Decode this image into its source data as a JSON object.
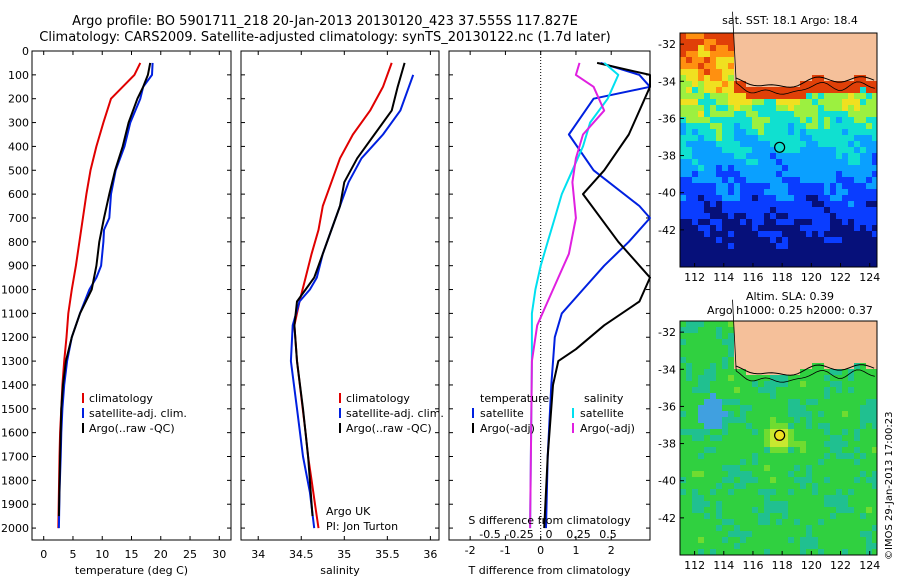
{
  "header": {
    "title_line1": "Argo profile: BO 5901711_218 20-Jan-2013 20130120_423 37.555S 117.827E",
    "title_line2": "Climatology: CARS2009. Satellite-adjusted climatology: synTS_20130122.nc (1.7d later)"
  },
  "colors": {
    "climatology": "#e00000",
    "satellite": "#0020e0",
    "argo": "#000000",
    "sal_satellite": "#00e0f0",
    "sal_argo": "#e020e0",
    "land": "#f5c09a"
  },
  "depth_axis": {
    "ylim": [
      0,
      2050
    ],
    "ticks": [
      0,
      100,
      200,
      300,
      400,
      500,
      600,
      700,
      800,
      900,
      1000,
      1100,
      1200,
      1300,
      1400,
      1500,
      1600,
      1700,
      1800,
      1900,
      2000
    ],
    "reversed": true
  },
  "chart_data": [
    {
      "type": "line",
      "xlabel": "temperature (deg C)",
      "xlim": [
        -2,
        32
      ],
      "xticks": [
        0,
        5,
        10,
        15,
        20,
        25,
        30
      ],
      "legend": [
        "climatology",
        "satellite-adj. clim.",
        "Argo(..raw -QC)"
      ],
      "series": [
        {
          "name": "climatology",
          "color": "climatology",
          "x": [
            16.5,
            15.5,
            13.5,
            11.5,
            10.2,
            9.0,
            8.0,
            7.3,
            6.7,
            6.1,
            5.5,
            4.8,
            4.2,
            3.9,
            3.5,
            3.2,
            3.0,
            2.8,
            2.7,
            2.6,
            2.5
          ],
          "y": [
            50,
            100,
            150,
            200,
            300,
            400,
            500,
            600,
            700,
            800,
            900,
            1000,
            1100,
            1200,
            1300,
            1400,
            1500,
            1600,
            1700,
            1850,
            2000
          ]
        },
        {
          "name": "satellite-adj. clim.",
          "color": "satellite",
          "x": [
            18.6,
            18.5,
            17.0,
            16.5,
            14.8,
            13.8,
            12.3,
            11.5,
            11.2,
            10.3,
            10.2,
            9.8,
            9.0,
            7.8,
            6.2,
            4.8,
            4.0,
            3.5,
            3.2,
            3.0,
            2.9,
            2.7,
            2.6
          ],
          "y": [
            50,
            100,
            150,
            200,
            300,
            400,
            500,
            600,
            700,
            750,
            800,
            900,
            950,
            1000,
            1100,
            1200,
            1300,
            1400,
            1500,
            1600,
            1700,
            1850,
            2000
          ]
        },
        {
          "name": "Argo(..raw -QC)",
          "color": "argo",
          "x": [
            18.2,
            17.8,
            17.0,
            16.0,
            14.5,
            13.5,
            12.2,
            11.2,
            10.3,
            9.5,
            9.0,
            8.2,
            6.2,
            4.8,
            3.8,
            3.3,
            3.0,
            2.8,
            2.6
          ],
          "y": [
            50,
            100,
            150,
            200,
            300,
            400,
            500,
            600,
            700,
            800,
            900,
            1000,
            1100,
            1200,
            1300,
            1400,
            1500,
            1700,
            1950
          ]
        }
      ]
    },
    {
      "type": "line",
      "xlabel": "salinity",
      "xlim": [
        33.8,
        36.1
      ],
      "xticks": [
        34,
        34.5,
        35,
        35.5,
        36
      ],
      "legend": [
        "climatology",
        "satellite-adj. clim.",
        "Argo(..raw -QC)"
      ],
      "annotation": [
        "Argo UK",
        "PI: Jon Turton"
      ],
      "series": [
        {
          "name": "climatology",
          "color": "climatology",
          "x": [
            35.55,
            35.45,
            35.3,
            35.1,
            34.95,
            34.85,
            34.75,
            34.7,
            34.62,
            34.55,
            34.48,
            34.42,
            34.45,
            34.5,
            34.55,
            34.58,
            34.62,
            34.66,
            34.7
          ],
          "y": [
            50,
            150,
            250,
            350,
            450,
            550,
            650,
            750,
            850,
            950,
            1050,
            1150,
            1300,
            1450,
            1600,
            1700,
            1800,
            1900,
            2000
          ]
        },
        {
          "name": "satellite-adj. clim.",
          "color": "satellite",
          "x": [
            35.8,
            35.75,
            35.65,
            35.45,
            35.2,
            35.05,
            34.95,
            34.85,
            34.75,
            34.68,
            34.6,
            34.48,
            34.4,
            34.38,
            34.45,
            34.52,
            34.6,
            34.65
          ],
          "y": [
            100,
            150,
            250,
            350,
            450,
            550,
            650,
            750,
            850,
            950,
            1000,
            1050,
            1150,
            1300,
            1500,
            1700,
            1850,
            2000
          ]
        },
        {
          "name": "Argo(..raw -QC)",
          "color": "argo",
          "x": [
            35.7,
            35.62,
            35.55,
            35.35,
            35.15,
            35.0,
            34.95,
            34.85,
            34.75,
            34.65,
            34.55,
            34.45,
            34.42,
            34.45,
            34.52,
            34.58,
            34.63
          ],
          "y": [
            50,
            150,
            250,
            350,
            450,
            550,
            650,
            750,
            850,
            950,
            1000,
            1050,
            1150,
            1300,
            1500,
            1700,
            1950
          ]
        }
      ]
    },
    {
      "type": "line",
      "xlabel": "T difference from climatology",
      "xlabel2": "S difference from climatology",
      "xlim": [
        -2.6,
        3.1
      ],
      "xticks": [
        -2,
        -1,
        0,
        1,
        2
      ],
      "xticks_salinity": [
        -0.5,
        -0.25,
        0,
        0.25,
        0.5
      ],
      "legend_headers": [
        "temperature",
        "salinity"
      ],
      "legend": [
        "satellite",
        "Argo(-adj)",
        "satellite",
        "Argo(-adj)"
      ],
      "series": [
        {
          "name": "satellite",
          "quantity": "temperature",
          "color": "satellite",
          "x": [
            1.7,
            2.8,
            3.1,
            1.5,
            0.8,
            1.5,
            2.8,
            3.1,
            2.5,
            1.8,
            1.2,
            0.6,
            0.4,
            0.3,
            0.2,
            0.15
          ],
          "y": [
            50,
            100,
            150,
            200,
            350,
            500,
            650,
            700,
            800,
            900,
            1000,
            1100,
            1200,
            1400,
            1700,
            2000
          ]
        },
        {
          "name": "Argo(-adj)",
          "quantity": "temperature",
          "color": "argo",
          "x": [
            1.6,
            3.1,
            3.1,
            2.5,
            1.8,
            1.2,
            2.2,
            3.1,
            2.8,
            1.8,
            1.0,
            0.5,
            0.35,
            0.2,
            0.1
          ],
          "y": [
            50,
            100,
            150,
            350,
            500,
            600,
            800,
            950,
            1050,
            1150,
            1250,
            1300,
            1400,
            1700,
            2000
          ]
        },
        {
          "name": "satellite",
          "quantity": "salinity",
          "color": "sal_satellite",
          "x": [
            1.8,
            2.2,
            1.9,
            1.4,
            1.2,
            0.9,
            0.6,
            0.4,
            0.2,
            0.0,
            -0.15,
            -0.25,
            -0.25,
            -0.3
          ],
          "y": [
            50,
            100,
            200,
            300,
            400,
            500,
            600,
            700,
            800,
            900,
            1000,
            1100,
            1300,
            2000
          ]
        },
        {
          "name": "Argo(-adj)",
          "quantity": "salinity",
          "color": "sal_argo",
          "x": [
            1.1,
            1.0,
            1.5,
            1.8,
            1.2,
            1.0,
            0.9,
            1.0,
            0.8,
            0.5,
            0.2,
            -0.1,
            -0.25,
            -0.3
          ],
          "y": [
            50,
            100,
            150,
            250,
            350,
            450,
            550,
            700,
            850,
            950,
            1050,
            1150,
            1300,
            2000
          ]
        }
      ]
    }
  ],
  "maps": [
    {
      "title": "sat. SST: 18.1  Argo: 18.4",
      "xticks": [
        112,
        114,
        116,
        118,
        120,
        122,
        124
      ],
      "yticks": [
        -32,
        -34,
        -36,
        -38,
        -40,
        -42
      ],
      "marker": {
        "lon": 117.827,
        "lat": -37.555
      }
    },
    {
      "title_line1": "Altim. SLA: 0.39",
      "title_line2": "Argo h1000: 0.25  h2000: 0.37",
      "xticks": [
        112,
        114,
        116,
        118,
        120,
        122,
        124
      ],
      "yticks": [
        -32,
        -34,
        -36,
        -38,
        -40,
        -42
      ],
      "marker": {
        "lon": 117.827,
        "lat": -37.555
      }
    }
  ],
  "footer": {
    "credit": "©IMOS 29-Jan-2013 17:00:23"
  }
}
